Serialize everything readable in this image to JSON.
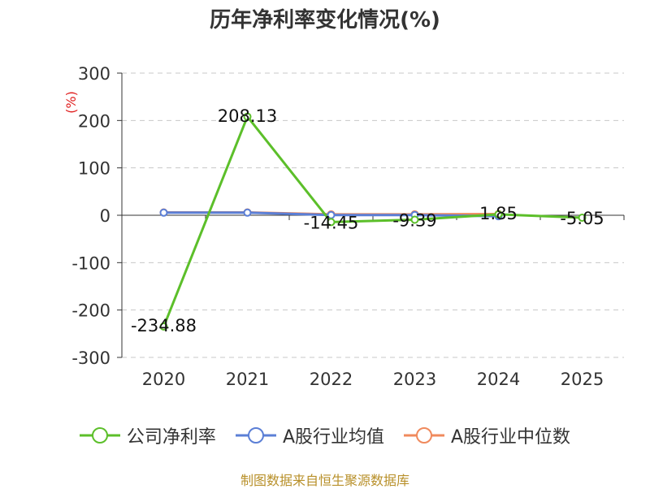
{
  "chart_data": {
    "type": "line",
    "title": "历年净利率变化情况(%)",
    "ylabel": "(%)",
    "xlabel": "",
    "categories": [
      "2020",
      "2021",
      "2022",
      "2023",
      "2024",
      "2025"
    ],
    "ylim": [
      -300,
      300
    ],
    "yticks": [
      300,
      200,
      100,
      0,
      -100,
      -200,
      -300
    ],
    "grid": true,
    "legend_position": "bottom",
    "series": [
      {
        "name": "公司净利率",
        "color": "#5cbf2a",
        "values": [
          -234.88,
          208.13,
          -14.45,
          -9.39,
          1.85,
          -5.05
        ],
        "labels": [
          "-234.88",
          "208.13",
          "-14.45",
          "-9.39",
          "1.85",
          "-5.05"
        ]
      },
      {
        "name": "A股行业均值",
        "color": "#5b7fd6",
        "values": [
          5.5,
          5.5,
          0.5,
          0.5,
          -2.0,
          null
        ]
      },
      {
        "name": "A股行业中位数",
        "color": "#f08a5d",
        "values": [
          6.0,
          6.0,
          2.0,
          2.0,
          2.5,
          null
        ]
      }
    ]
  },
  "source_note": "制图数据来自恒生聚源数据库"
}
